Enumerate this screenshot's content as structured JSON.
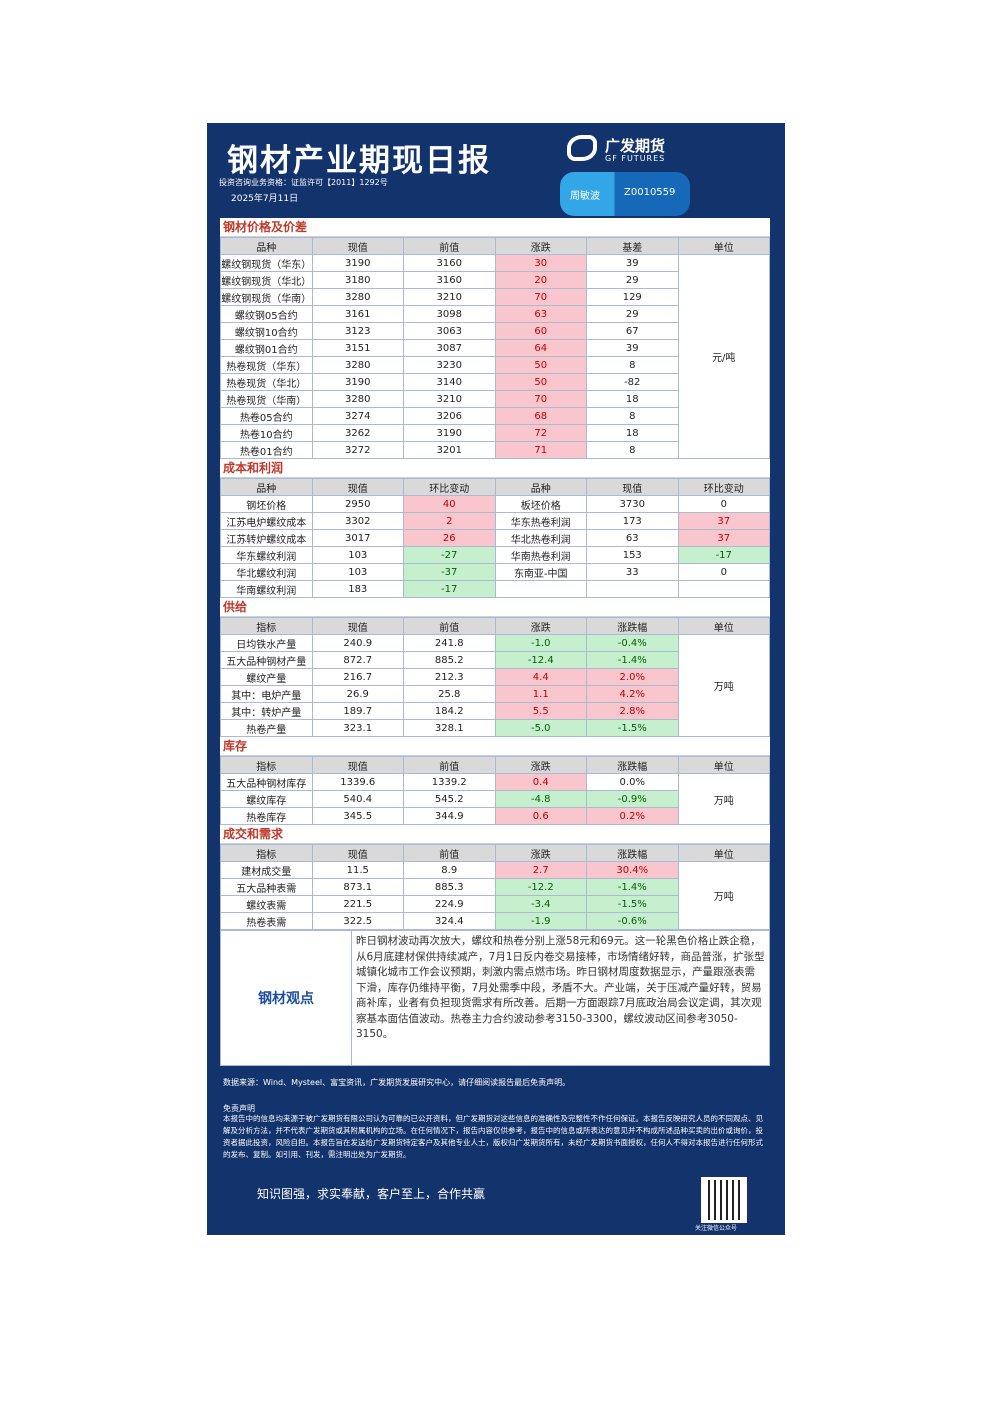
{
  "header": {
    "title": "钢材产业期现日报",
    "license": "投资咨询业务资格：证监许可【2011】1292号",
    "date": "2025年7月11日",
    "logo_cn": "广发期货",
    "logo_en": "GF FUTURES",
    "analyst": "周敏波",
    "analyst_id": "Z0010559"
  },
  "sections": [
    {
      "title": "钢材价格及价差",
      "columns": [
        "品种",
        "现值",
        "前值",
        "涨跌",
        "基差",
        "单位"
      ],
      "colored_columns": [
        3
      ],
      "unit": "元/吨",
      "rows": [
        [
          "螺纹钢现货（华东）",
          "3190",
          "3160",
          "30",
          "39"
        ],
        [
          "螺纹钢现货（华北）",
          "3180",
          "3160",
          "20",
          "29"
        ],
        [
          "螺纹钢现货（华南）",
          "3280",
          "3210",
          "70",
          "129"
        ],
        [
          "螺纹钢05合约",
          "3161",
          "3098",
          "63",
          "29"
        ],
        [
          "螺纹钢10合约",
          "3123",
          "3063",
          "60",
          "67"
        ],
        [
          "螺纹钢01合约",
          "3151",
          "3087",
          "64",
          "39"
        ],
        [
          "热卷现货（华东）",
          "3280",
          "3230",
          "50",
          "8"
        ],
        [
          "热卷现货（华北）",
          "3190",
          "3140",
          "50",
          "-82"
        ],
        [
          "热卷现货（华南）",
          "3280",
          "3210",
          "70",
          "18"
        ],
        [
          "热卷05合约",
          "3274",
          "3206",
          "68",
          "8"
        ],
        [
          "热卷10合约",
          "3262",
          "3190",
          "72",
          "18"
        ],
        [
          "热卷01合约",
          "3272",
          "3201",
          "71",
          "8"
        ]
      ]
    },
    {
      "title": "成本和利润",
      "columns": [
        "品种",
        "现值",
        "环比变动",
        "品种",
        "现值",
        "环比变动"
      ],
      "colored_columns": [
        2,
        5
      ],
      "rows": [
        [
          "钢坯价格",
          "2950",
          "40",
          "板坯价格",
          "3730",
          "0"
        ],
        [
          "江苏电炉螺纹成本",
          "3302",
          "2",
          "华东热卷利润",
          "173",
          "37"
        ],
        [
          "江苏转炉螺纹成本",
          "3017",
          "26",
          "华北热卷利润",
          "63",
          "37"
        ],
        [
          "华东螺纹利润",
          "103",
          "-27",
          "华南热卷利润",
          "153",
          "-17"
        ],
        [
          "华北螺纹利润",
          "103",
          "-37",
          "东南亚-中国",
          "33",
          "0"
        ],
        [
          "华南螺纹利润",
          "183",
          "-17"
        ]
      ]
    },
    {
      "title": "供给",
      "columns": [
        "指标",
        "现值",
        "前值",
        "涨跌",
        "涨跌幅",
        "单位"
      ],
      "colored_columns": [
        3,
        4
      ],
      "unit": "万吨",
      "rows": [
        [
          "日均铁水产量",
          "240.9",
          "241.8",
          "-1.0",
          "-0.4%"
        ],
        [
          "五大品种钢材产量",
          "872.7",
          "885.2",
          "-12.4",
          "-1.4%"
        ],
        [
          "螺纹产量",
          "216.7",
          "212.3",
          "4.4",
          "2.0%"
        ],
        [
          "其中：电炉产量",
          "26.9",
          "25.8",
          "1.1",
          "4.2%"
        ],
        [
          "其中：转炉产量",
          "189.7",
          "184.2",
          "5.5",
          "2.8%"
        ],
        [
          "热卷产量",
          "323.1",
          "328.1",
          "-5.0",
          "-1.5%"
        ]
      ]
    },
    {
      "title": "库存",
      "columns": [
        "指标",
        "现值",
        "前值",
        "涨跌",
        "涨跌幅",
        "单位"
      ],
      "colored_columns": [
        3,
        4
      ],
      "unit": "万吨",
      "rows": [
        [
          "五大品种钢材库存",
          "1339.6",
          "1339.2",
          "0.4",
          "0.0%"
        ],
        [
          "螺纹库存",
          "540.4",
          "545.2",
          "-4.8",
          "-0.9%"
        ],
        [
          "热卷库存",
          "345.5",
          "344.9",
          "0.6",
          "0.2%"
        ]
      ]
    },
    {
      "title": "成交和需求",
      "columns": [
        "指标",
        "现值",
        "前值",
        "涨跌",
        "涨跌幅",
        "单位"
      ],
      "colored_columns": [
        3,
        4
      ],
      "unit": "万吨",
      "rows": [
        [
          "建材成交量",
          "11.5",
          "8.9",
          "2.7",
          "30.4%"
        ],
        [
          "五大品种表需",
          "873.1",
          "885.3",
          "-12.2",
          "-1.4%"
        ],
        [
          "螺纹表需",
          "221.5",
          "224.9",
          "-3.4",
          "-1.5%"
        ],
        [
          "热卷表需",
          "322.5",
          "324.4",
          "-1.9",
          "-0.6%"
        ]
      ]
    }
  ],
  "view": {
    "title": "钢材观点",
    "text": "昨日钢材波动再次放大，螺纹和热卷分别上涨58元和69元。这一轮黑色价格止跌企稳，从6月底建材保供持续减产，7月1日反内卷交易接棒，市场情绪好转，商品普涨，扩张型城镇化城市工作会议预期，刺激内需点燃市场。昨日钢材周度数据显示，产量跟涨表需下滑，库存仍维持平衡，7月处需季中段，矛盾不大。产业端，关于压减产量好转，贸易商补库，业者有负担现货需求有所改善。后期一方面跟踪7月底政治局会议定调，其次观察基本面估值波动。热卷主力合约波动参考3150-3300，螺纹波动区间参考3050-3150。"
  },
  "footer": {
    "source": "数据来源：Wind、Mysteel、富宝资讯，广发期货发展研究中心，请仔细阅读报告最后免责声明。",
    "disclaimer_title": "免责声明",
    "disclaimer": "本报告中的信息均来源于被广发期货有限公司认为可靠的已公开资料，但广发期货对这些信息的准确性及完整性不作任何保证。本报告反映研究人员的不同观点、见解及分析方法，并不代表广发期货或其附属机构的立场。在任何情况下，报告内容仅供参考，报告中的信息或所表达的意见并不构成所述品种买卖的出价或询价，投资者据此投资，风险自担。本报告旨在发送给广发期货特定客户及其他专业人士，版权归广发期货所有，未经广发期货书面授权，任何人不得对本报告进行任何形式的发布、复制。如引用、刊发，需注明出处为广发期货。",
    "slogan": "知识图强，求实奉献，客户至上，合作共赢",
    "qr_caption": "关注微信公众号"
  }
}
